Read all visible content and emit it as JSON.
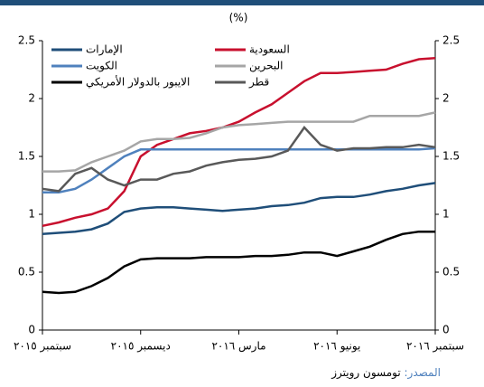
{
  "chart_data": {
    "type": "line",
    "title": "(%)",
    "x": [
      0,
      0.5,
      1,
      1.5,
      2,
      2.5,
      3,
      3.5,
      4,
      4.5,
      5,
      5.5,
      6,
      6.5,
      7,
      7.5,
      8,
      8.5,
      9,
      9.5,
      10,
      10.5,
      11,
      11.5,
      12
    ],
    "xlim": [
      0,
      12
    ],
    "xticks": [
      {
        "value": 0,
        "label": "سبتمبر ٢٠١٥"
      },
      {
        "value": 3,
        "label": "ديسمبر ٢٠١٥"
      },
      {
        "value": 6,
        "label": "مارس ٢٠١٦"
      },
      {
        "value": 9,
        "label": "يونيو ٢٠١٦"
      },
      {
        "value": 12,
        "label": "سبتمبر ٢٠١٦"
      }
    ],
    "ylim": [
      0,
      2.5
    ],
    "yticks": [
      0,
      0.5,
      1,
      1.5,
      2,
      2.5
    ],
    "series": [
      {
        "name": "الإمارات",
        "color": "#1f4e79",
        "values": [
          0.83,
          0.84,
          0.85,
          0.87,
          0.92,
          1.02,
          1.05,
          1.06,
          1.06,
          1.05,
          1.04,
          1.03,
          1.04,
          1.05,
          1.07,
          1.08,
          1.1,
          1.14,
          1.15,
          1.15,
          1.17,
          1.2,
          1.22,
          1.25,
          1.27
        ]
      },
      {
        "name": "السعودية",
        "color": "#c8102e",
        "values": [
          0.9,
          0.93,
          0.97,
          1.0,
          1.05,
          1.2,
          1.5,
          1.6,
          1.65,
          1.7,
          1.72,
          1.75,
          1.8,
          1.88,
          1.95,
          2.05,
          2.15,
          2.22,
          2.22,
          2.23,
          2.24,
          2.25,
          2.3,
          2.34,
          2.35
        ]
      },
      {
        "name": "الكويت",
        "color": "#4f81bd",
        "values": [
          1.19,
          1.19,
          1.22,
          1.3,
          1.4,
          1.5,
          1.56,
          1.56,
          1.56,
          1.56,
          1.56,
          1.56,
          1.56,
          1.56,
          1.56,
          1.56,
          1.56,
          1.56,
          1.56,
          1.56,
          1.56,
          1.56,
          1.56,
          1.56,
          1.57
        ]
      },
      {
        "name": "البحرين",
        "color": "#a6a6a6",
        "values": [
          1.37,
          1.37,
          1.38,
          1.45,
          1.5,
          1.55,
          1.63,
          1.65,
          1.65,
          1.66,
          1.7,
          1.75,
          1.77,
          1.78,
          1.79,
          1.8,
          1.8,
          1.8,
          1.8,
          1.8,
          1.85,
          1.85,
          1.85,
          1.85,
          1.88
        ]
      },
      {
        "name": "الايبور بالدولار الأمريكي",
        "color": "#000000",
        "values": [
          0.33,
          0.32,
          0.33,
          0.38,
          0.45,
          0.55,
          0.61,
          0.62,
          0.62,
          0.62,
          0.63,
          0.63,
          0.63,
          0.64,
          0.64,
          0.65,
          0.67,
          0.67,
          0.64,
          0.68,
          0.72,
          0.78,
          0.83,
          0.85,
          0.85
        ]
      },
      {
        "name": "قطر",
        "color": "#595959",
        "values": [
          1.22,
          1.2,
          1.35,
          1.4,
          1.3,
          1.25,
          1.3,
          1.3,
          1.35,
          1.37,
          1.42,
          1.45,
          1.47,
          1.48,
          1.5,
          1.55,
          1.75,
          1.6,
          1.55,
          1.57,
          1.57,
          1.58,
          1.58,
          1.6,
          1.58
        ]
      }
    ],
    "source": {
      "label": "المصدر:",
      "text": "تومسون رويترز"
    }
  }
}
